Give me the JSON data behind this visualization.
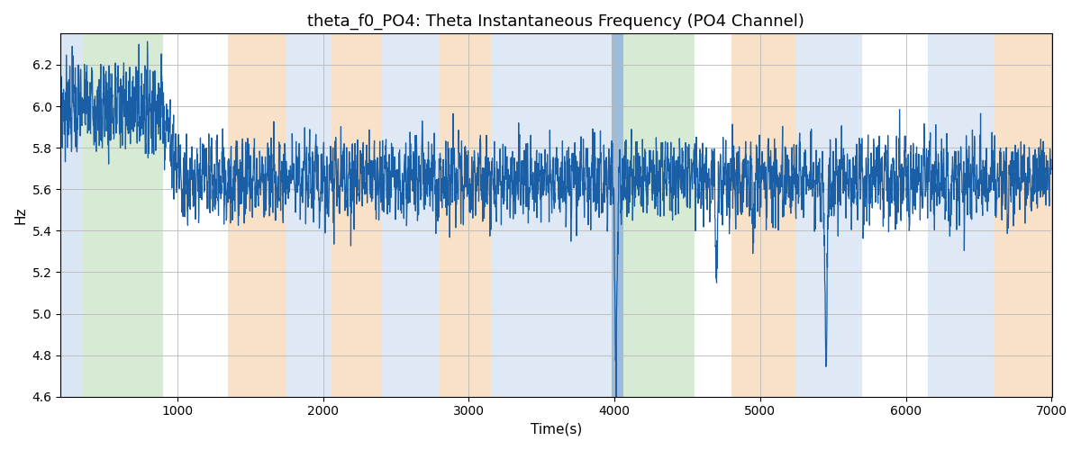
{
  "title": "theta_f0_PO4: Theta Instantaneous Frequency (PO4 Channel)",
  "xlabel": "Time(s)",
  "ylabel": "Hz",
  "xlim": [
    200,
    7000
  ],
  "ylim": [
    4.6,
    6.35
  ],
  "line_color": "#1a5fa6",
  "line_width": 0.9,
  "background_color": "#ffffff",
  "grid_color": "#b8b8b8",
  "title_fontsize": 13,
  "axis_fontsize": 11,
  "regions": [
    {
      "xmin": 200,
      "xmax": 355,
      "color": "#adc8e8",
      "alpha": 0.45
    },
    {
      "xmin": 355,
      "xmax": 900,
      "color": "#a8d4a0",
      "alpha": 0.45
    },
    {
      "xmin": 1350,
      "xmax": 1750,
      "color": "#f5c99a",
      "alpha": 0.55
    },
    {
      "xmin": 1750,
      "xmax": 2050,
      "color": "#adc8e8",
      "alpha": 0.4
    },
    {
      "xmin": 2050,
      "xmax": 2400,
      "color": "#f5c99a",
      "alpha": 0.55
    },
    {
      "xmin": 2400,
      "xmax": 2800,
      "color": "#adc8e8",
      "alpha": 0.4
    },
    {
      "xmin": 2800,
      "xmax": 3150,
      "color": "#f5c99a",
      "alpha": 0.55
    },
    {
      "xmin": 3150,
      "xmax": 3980,
      "color": "#adc8e8",
      "alpha": 0.4
    },
    {
      "xmin": 3980,
      "xmax": 4060,
      "color": "#6699cc",
      "alpha": 0.65
    },
    {
      "xmin": 4060,
      "xmax": 4550,
      "color": "#a8d4a0",
      "alpha": 0.45
    },
    {
      "xmin": 4800,
      "xmax": 5250,
      "color": "#f5c99a",
      "alpha": 0.55
    },
    {
      "xmin": 5250,
      "xmax": 5700,
      "color": "#adc8e8",
      "alpha": 0.4
    },
    {
      "xmin": 6150,
      "xmax": 6600,
      "color": "#adc8e8",
      "alpha": 0.4
    },
    {
      "xmin": 6600,
      "xmax": 7000,
      "color": "#f5c99a",
      "alpha": 0.55
    }
  ],
  "xticks": [
    1000,
    2000,
    3000,
    4000,
    5000,
    6000,
    7000
  ],
  "yticks": [
    4.6,
    4.8,
    5.0,
    5.2,
    5.4,
    5.6,
    5.8,
    6.0,
    6.2
  ]
}
